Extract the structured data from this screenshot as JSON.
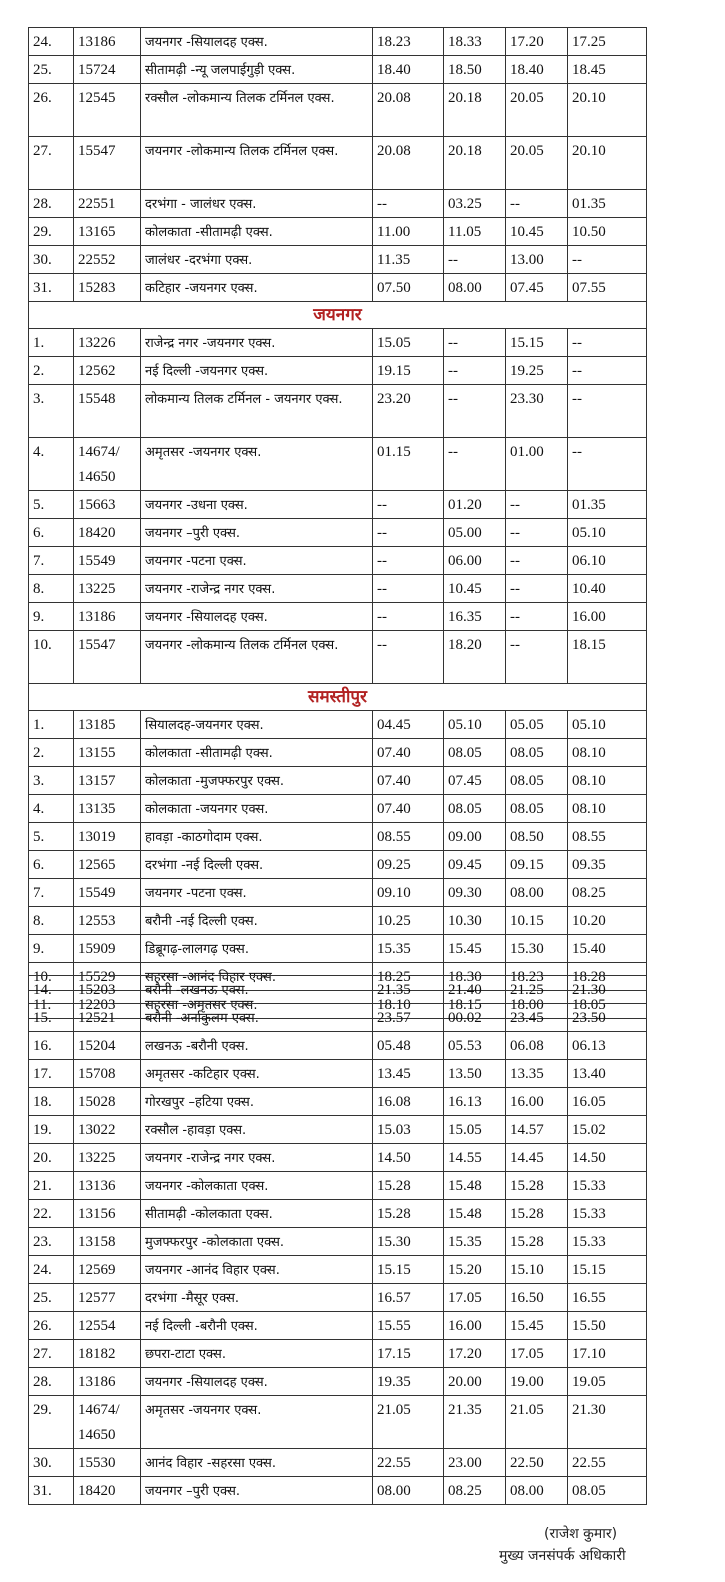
{
  "table1": [
    {
      "no": "24.",
      "train": "13186",
      "name": "जयनगर -सियालदह एक्स.",
      "t1": "18.23",
      "t2": "18.33",
      "t3": "17.20",
      "t4": "17.25"
    },
    {
      "no": "25.",
      "train": "15724",
      "name": "सीतामढ़ी -न्यू जलपाईगुड़ी एक्स.",
      "t1": "18.40",
      "t2": "18.50",
      "t3": "18.40",
      "t4": "18.45"
    },
    {
      "no": "26.",
      "train": "12545",
      "name": "रक्सौल -लोकमान्य तिलक टर्मिनल एक्स.",
      "t1": "20.08",
      "t2": "20.18",
      "t3": "20.05",
      "t4": "20.10",
      "double": true
    },
    {
      "no": "27.",
      "train": "15547",
      "name": "जयनगर -लोकमान्य तिलक टर्मिनल एक्स.",
      "t1": "20.08",
      "t2": "20.18",
      "t3": "20.05",
      "t4": "20.10",
      "double": true
    },
    {
      "no": "28.",
      "train": "22551",
      "name": "दरभंगा - जालंधर एक्स.",
      "t1": "--",
      "t2": "03.25",
      "t3": "--",
      "t4": "01.35"
    },
    {
      "no": "29.",
      "train": "13165",
      "name": "कोलकाता -सीतामढ़ी एक्स.",
      "t1": "11.00",
      "t2": "11.05",
      "t3": "10.45",
      "t4": "10.50"
    },
    {
      "no": "30.",
      "train": "22552",
      "name": "जालंधर -दरभंगा एक्स.",
      "t1": "11.35",
      "t2": "--",
      "t3": "13.00",
      "t4": "--"
    },
    {
      "no": "31.",
      "train": "15283",
      "name": "कटिहार -जयनगर एक्स.",
      "t1": "07.50",
      "t2": "08.00",
      "t3": "07.45",
      "t4": "07.55"
    },
    {
      "section": "जयनगर"
    },
    {
      "no": "1.",
      "train": "13226",
      "name": "राजेन्द्र नगर -जयनगर एक्स.",
      "t1": "15.05",
      "t2": "--",
      "t3": "15.15",
      "t4": "--"
    },
    {
      "no": "2.",
      "train": "12562",
      "name": "नई दिल्ली -जयनगर एक्स.",
      "t1": "19.15",
      "t2": "--",
      "t3": "19.25",
      "t4": "--"
    },
    {
      "no": "3.",
      "train": "15548",
      "name": "लोकमान्य तिलक टर्मिनल - जयनगर एक्स.",
      "t1": "23.20",
      "t2": "--",
      "t3": "23.30",
      "t4": "--",
      "double": true
    },
    {
      "no": "4.",
      "train": "14674/ 14650",
      "name": "अमृतसर -जयनगर एक्स.",
      "t1": "01.15",
      "t2": "--",
      "t3": "01.00",
      "t4": "--",
      "double": true
    },
    {
      "no": "5.",
      "train": "15663",
      "name": "जयनगर -उधना एक्स.",
      "t1": "--",
      "t2": "01.20",
      "t3": "--",
      "t4": "01.35"
    },
    {
      "no": "6.",
      "train": "18420",
      "name": "जयनगर –पुरी एक्स.",
      "t1": "--",
      "t2": "05.00",
      "t3": "--",
      "t4": "05.10"
    },
    {
      "no": "7.",
      "train": "15549",
      "name": "जयनगर -पटना एक्स.",
      "t1": "--",
      "t2": "06.00",
      "t3": "--",
      "t4": "06.10"
    },
    {
      "no": "8.",
      "train": "13225",
      "name": "जयनगर -राजेन्द्र नगर एक्स.",
      "t1": "--",
      "t2": "10.45",
      "t3": "--",
      "t4": "10.40"
    },
    {
      "no": "9.",
      "train": "13186",
      "name": "जयनगर -सियालदह एक्स.",
      "t1": "--",
      "t2": "16.35",
      "t3": "--",
      "t4": "16.00"
    },
    {
      "no": "10.",
      "train": "15547",
      "name": "जयनगर -लोकमान्य तिलक टर्मिनल एक्स.",
      "t1": "--",
      "t2": "18.20",
      "t3": "--",
      "t4": "18.15",
      "double": true
    },
    {
      "section": "समस्तीपुर"
    },
    {
      "no": "1.",
      "train": "13185",
      "name": "सियालदह-जयनगर एक्स.",
      "t1": "04.45",
      "t2": "05.10",
      "t3": "05.05",
      "t4": "05.10"
    },
    {
      "no": "2.",
      "train": "13155",
      "name": "कोलकाता -सीतामढ़ी एक्स.",
      "t1": "07.40",
      "t2": "08.05",
      "t3": "08.05",
      "t4": "08.10"
    },
    {
      "no": "3.",
      "train": "13157",
      "name": "कोलकाता -मुजफ्फरपुर एक्स.",
      "t1": "07.40",
      "t2": "07.45",
      "t3": "08.05",
      "t4": "08.10"
    },
    {
      "no": "4.",
      "train": "13135",
      "name": "कोलकाता -जयनगर एक्स.",
      "t1": "07.40",
      "t2": "08.05",
      "t3": "08.05",
      "t4": "08.10"
    },
    {
      "no": "5.",
      "train": "13019",
      "name": "हावड़ा -काठगोदाम एक्स.",
      "t1": "08.55",
      "t2": "09.00",
      "t3": "08.50",
      "t4": "08.55"
    },
    {
      "no": "6.",
      "train": "12565",
      "name": "दरभंगा -नई दिल्ली एक्स.",
      "t1": "09.25",
      "t2": "09.45",
      "t3": "09.15",
      "t4": "09.35"
    },
    {
      "no": "7.",
      "train": "15549",
      "name": "जयनगर -पटना एक्स.",
      "t1": "09.10",
      "t2": "09.30",
      "t3": "08.00",
      "t4": "08.25"
    },
    {
      "no": "8.",
      "train": "12553",
      "name": "बरौनी -नई दिल्ली एक्स.",
      "t1": "10.25",
      "t2": "10.30",
      "t3": "10.15",
      "t4": "10.20"
    },
    {
      "no": "9.",
      "train": "15909",
      "name": "डिब्रूगढ़-लालगढ़ एक्स.",
      "t1": "15.35",
      "t2": "15.45",
      "t3": "15.30",
      "t4": "15.40"
    },
    {
      "no": "10.",
      "train": "15529",
      "name": "सहरसा -आनंद विहार एक्स.",
      "t1": "18.25",
      "t2": "18.30",
      "t3": "18.23",
      "t4": "18.28"
    },
    {
      "no": "11.",
      "train": "12203",
      "name": "सहरसा -अमृतसर एक्स.",
      "t1": "18.10",
      "t2": "18.15",
      "t3": "18.00",
      "t4": "18.05"
    }
  ],
  "table2": [
    {
      "no": "14.",
      "train": "15203",
      "name": "बरौनी -लखनऊ एक्स.",
      "t1": "21.35",
      "t2": "21.40",
      "t3": "21.25",
      "t4": "21.30"
    },
    {
      "no": "15.",
      "train": "12521",
      "name": "बरौनी -अर्नाकुलम एक्स.",
      "t1": "23.57",
      "t2": "00.02",
      "t3": "23.45",
      "t4": "23.50"
    },
    {
      "no": "16.",
      "train": "15204",
      "name": "लखनऊ -बरौनी एक्स.",
      "t1": "05.48",
      "t2": "05.53",
      "t3": "06.08",
      "t4": "06.13"
    },
    {
      "no": "17.",
      "train": "15708",
      "name": "अमृतसर -कटिहार एक्स.",
      "t1": "13.45",
      "t2": "13.50",
      "t3": "13.35",
      "t4": "13.40"
    },
    {
      "no": "18.",
      "train": "15028",
      "name": "गोरखपुर –हटिया एक्स.",
      "t1": "16.08",
      "t2": "16.13",
      "t3": "16.00",
      "t4": "16.05"
    },
    {
      "no": "19.",
      "train": "13022",
      "name": "रक्सौल -हावड़ा एक्स.",
      "t1": "15.03",
      "t2": "15.05",
      "t3": "14.57",
      "t4": "15.02"
    },
    {
      "no": "20.",
      "train": "13225",
      "name": "जयनगर -राजेन्द्र नगर एक्स.",
      "t1": "14.50",
      "t2": "14.55",
      "t3": "14.45",
      "t4": "14.50"
    },
    {
      "no": "21.",
      "train": "13136",
      "name": "जयनगर -कोलकाता एक्स.",
      "t1": "15.28",
      "t2": "15.48",
      "t3": "15.28",
      "t4": "15.33"
    },
    {
      "no": "22.",
      "train": "13156",
      "name": "सीतामढ़ी -कोलकाता एक्स.",
      "t1": "15.28",
      "t2": "15.48",
      "t3": "15.28",
      "t4": "15.33"
    },
    {
      "no": "23.",
      "train": "13158",
      "name": "मुजफ्फरपुर -कोलकाता एक्स.",
      "t1": "15.30",
      "t2": "15.35",
      "t3": "15.28",
      "t4": "15.33"
    },
    {
      "no": "24.",
      "train": "12569",
      "name": "जयनगर -आनंद विहार एक्स.",
      "t1": "15.15",
      "t2": "15.20",
      "t3": "15.10",
      "t4": "15.15"
    },
    {
      "no": "25.",
      "train": "12577",
      "name": "दरभंगा -मैसूर एक्स.",
      "t1": "16.57",
      "t2": "17.05",
      "t3": "16.50",
      "t4": "16.55"
    },
    {
      "no": "26.",
      "train": "12554",
      "name": "नई दिल्ली -बरौनी एक्स.",
      "t1": "15.55",
      "t2": "16.00",
      "t3": "15.45",
      "t4": "15.50"
    },
    {
      "no": "27.",
      "train": "18182",
      "name": "छपरा-टाटा एक्स.",
      "t1": "17.15",
      "t2": "17.20",
      "t3": "17.05",
      "t4": "17.10"
    },
    {
      "no": "28.",
      "train": "13186",
      "name": "जयनगर -सियालदह एक्स.",
      "t1": "19.35",
      "t2": "20.00",
      "t3": "19.00",
      "t4": "19.05"
    },
    {
      "no": "29.",
      "train": "14674/ 14650",
      "name": "अमृतसर -जयनगर एक्स.",
      "t1": "21.05",
      "t2": "21.35",
      "t3": "21.05",
      "t4": "21.30",
      "double": true
    },
    {
      "no": "30.",
      "train": "15530",
      "name": "आनंद विहार -सहरसा एक्स.",
      "t1": "22.55",
      "t2": "23.00",
      "t3": "22.50",
      "t4": "22.55"
    },
    {
      "no": "31.",
      "train": "18420",
      "name": "जयनगर –पुरी एक्स.",
      "t1": "08.00",
      "t2": "08.25",
      "t3": "08.00",
      "t4": "08.05"
    }
  ],
  "signature": {
    "name": "(राजेश कुमार)",
    "designation": "मुख्य जनसंपर्क अधिकारी"
  },
  "colors": {
    "section_heading": "#b22222"
  }
}
